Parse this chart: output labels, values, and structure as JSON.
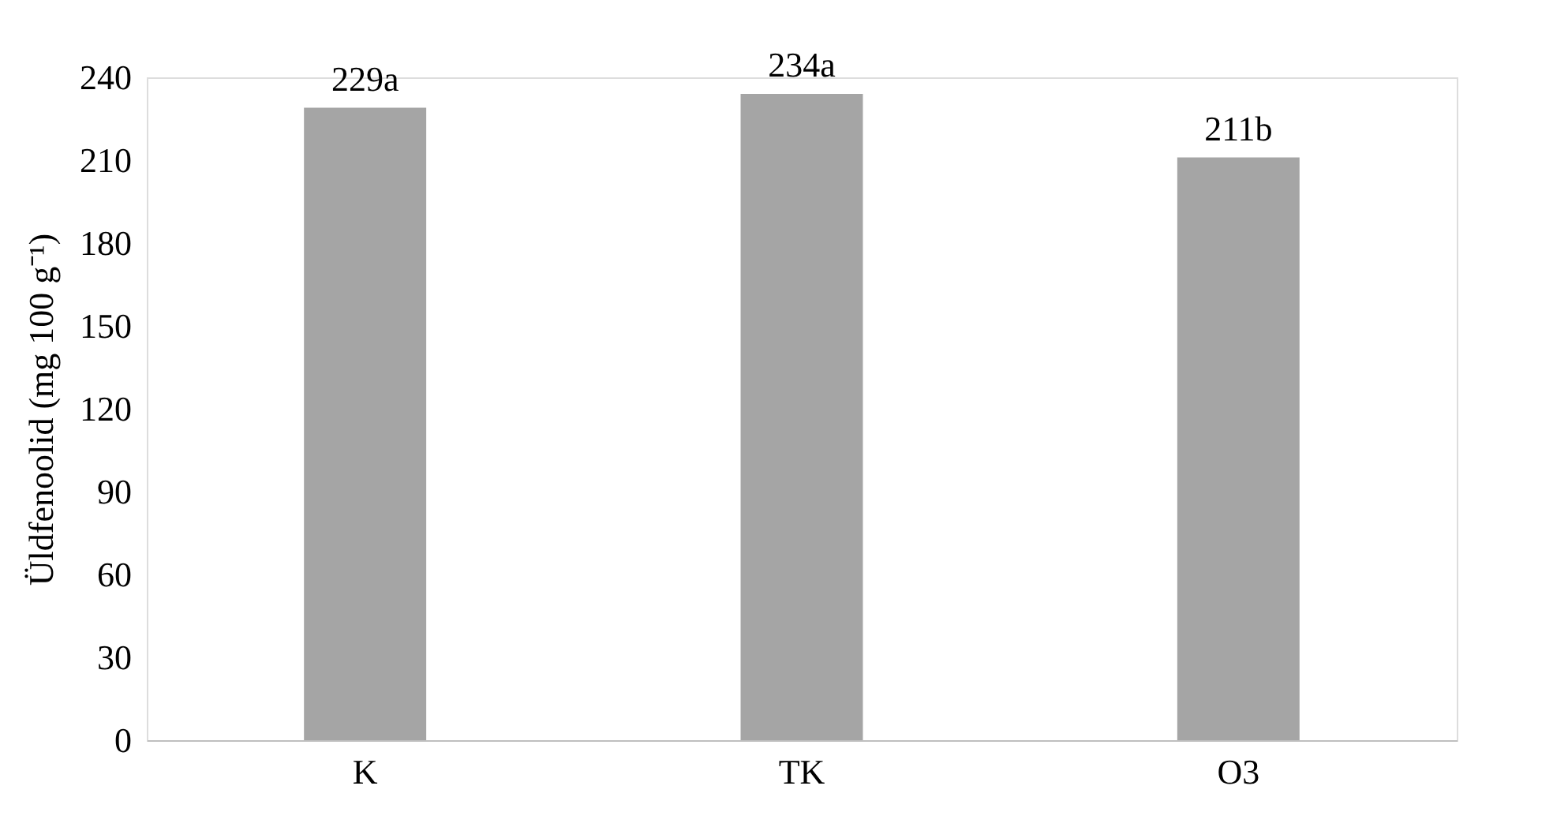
{
  "chart_data": {
    "type": "bar",
    "ylabel": "Üldfenoolid (mg 100 g⁻¹)",
    "categories": [
      "K",
      "TK",
      "O3"
    ],
    "values": [
      229,
      234,
      211
    ],
    "value_labels": [
      "229a",
      "234a",
      "211b"
    ],
    "color": "#a5a5a5",
    "ylim": [
      0,
      240
    ],
    "yticks": [
      0,
      30,
      60,
      90,
      120,
      150,
      180,
      210,
      240
    ],
    "grid": false
  }
}
